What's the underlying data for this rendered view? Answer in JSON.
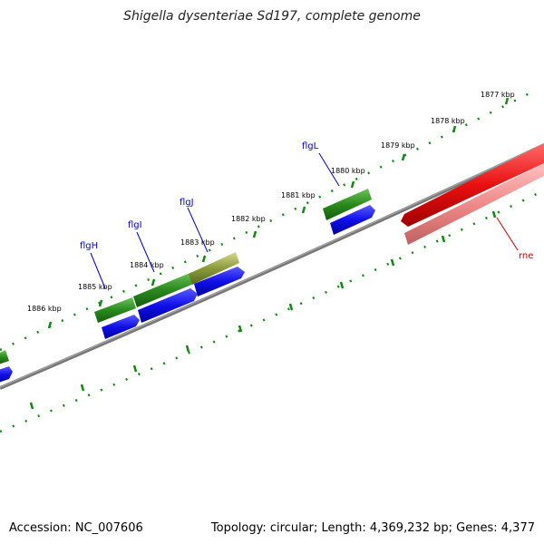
{
  "title": "Shigella dysenteriae Sd197, complete genome",
  "footer": {
    "accession": "Accession: NC_007606",
    "summary": "Topology: circular; Length: 4,369,232 bp; Genes: 4,377"
  },
  "colors": {
    "backbone": "#777777",
    "tick": "#118811",
    "gene_forward": "#2a8a1e",
    "gene_reverse": "#1010e8",
    "rna": "#e81010",
    "rna_light": "#f08a8a",
    "label_blue": "#0000c8",
    "label_red": "#c80000"
  },
  "scale_labels": [
    "1877 kbp",
    "1878 kbp",
    "1879 kbp",
    "1880 kbp",
    "1881 kbp",
    "1882 kbp",
    "1883 kbp",
    "1884 kbp",
    "1885 kbp",
    "1886 kbp"
  ],
  "gene_labels": [
    {
      "text": "flgL",
      "color": "label_blue"
    },
    {
      "text": "flgJ",
      "color": "label_blue"
    },
    {
      "text": "flgI",
      "color": "label_blue"
    },
    {
      "text": "flgH",
      "color": "label_blue"
    },
    {
      "text": "rne",
      "color": "label_red"
    }
  ]
}
